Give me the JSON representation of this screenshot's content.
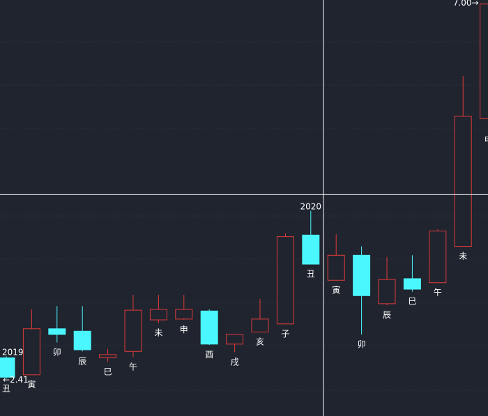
{
  "chart_data": {
    "type": "candlestick",
    "price_range": [
      1.9,
      7.05
    ],
    "colors": {
      "background": "#1f242e",
      "grid": "#2e3540",
      "up": "#e23b3b",
      "down": "#4af7ff",
      "crosshair": "#ffffff",
      "text": "#ffffff"
    },
    "grid": true,
    "crosshair": {
      "x_index": 12.5,
      "price": 4.64
    },
    "candles": [
      {
        "label": "丑",
        "open": 2.62,
        "close": 2.38,
        "high": 2.64,
        "low": 2.36,
        "dir": "down"
      },
      {
        "label": "寅",
        "open": 2.41,
        "close": 2.98,
        "high": 3.22,
        "low": 2.41,
        "dir": "up"
      },
      {
        "label": "卯",
        "open": 2.98,
        "close": 2.91,
        "high": 3.26,
        "low": 2.81,
        "dir": "down"
      },
      {
        "label": "辰",
        "open": 2.95,
        "close": 2.72,
        "high": 3.26,
        "low": 2.7,
        "dir": "down"
      },
      {
        "label": "巳",
        "open": 2.62,
        "close": 2.66,
        "high": 2.73,
        "low": 2.57,
        "dir": "up"
      },
      {
        "label": "午",
        "open": 2.7,
        "close": 3.21,
        "high": 3.4,
        "low": 2.63,
        "dir": "up"
      },
      {
        "label": "未",
        "open": 3.09,
        "close": 3.22,
        "high": 3.4,
        "low": 3.05,
        "dir": "up"
      },
      {
        "label": "申",
        "open": 3.1,
        "close": 3.22,
        "high": 3.4,
        "low": 3.09,
        "dir": "up"
      },
      {
        "label": "酉",
        "open": 3.2,
        "close": 2.79,
        "high": 3.22,
        "low": 2.78,
        "dir": "down"
      },
      {
        "label": "戌",
        "open": 2.79,
        "close": 2.91,
        "high": 2.91,
        "low": 2.69,
        "dir": "up"
      },
      {
        "label": "亥",
        "open": 2.94,
        "close": 3.1,
        "high": 3.35,
        "low": 2.94,
        "dir": "up"
      },
      {
        "label": "子",
        "open": 3.04,
        "close": 4.12,
        "high": 4.16,
        "low": 3.04,
        "dir": "up"
      },
      {
        "label": "丑",
        "open": 4.14,
        "close": 3.78,
        "high": 4.44,
        "low": 3.78,
        "dir": "down"
      },
      {
        "label": "寅",
        "open": 3.58,
        "close": 3.89,
        "high": 4.15,
        "low": 3.58,
        "dir": "up"
      },
      {
        "label": "卯",
        "open": 3.89,
        "close": 3.39,
        "high": 4.0,
        "low": 2.91,
        "dir": "down"
      },
      {
        "label": "辰",
        "open": 3.29,
        "close": 3.59,
        "high": 3.87,
        "low": 3.27,
        "dir": "up"
      },
      {
        "label": "巳",
        "open": 3.6,
        "close": 3.47,
        "high": 3.89,
        "low": 3.44,
        "dir": "down"
      },
      {
        "label": "午",
        "open": 3.55,
        "close": 4.19,
        "high": 4.21,
        "low": 3.55,
        "dir": "up"
      },
      {
        "label": "未",
        "open": 4.0,
        "close": 5.61,
        "high": 6.11,
        "low": 4.0,
        "dir": "up"
      },
      {
        "label": "申",
        "open": 5.58,
        "close": 7.0,
        "high": 7.05,
        "low": 5.44,
        "dir": "up"
      }
    ],
    "annotations": {
      "year_2019": "2019",
      "year_2020": "2020",
      "low_marker": "←2.41",
      "high_marker": "7.00→"
    }
  }
}
